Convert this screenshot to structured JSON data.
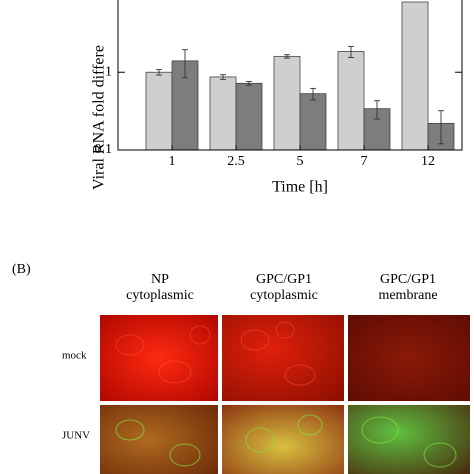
{
  "chart_data": {
    "type": "bar",
    "log_scale": true,
    "y_label": "Viral RNA fold differe",
    "x_label": "Time [h]",
    "categories": [
      "1",
      "2.5",
      "5",
      "7",
      "12"
    ],
    "series": [
      {
        "color": "#cfcfcf",
        "values": [
          1.0,
          0.87,
          1.6,
          1.85,
          8
        ],
        "errors": [
          0.08,
          0.06,
          0.08,
          0.3,
          null
        ]
      },
      {
        "color": "#7d7d7d",
        "values": [
          1.4,
          0.72,
          0.53,
          0.34,
          0.22
        ],
        "errors": [
          0.55,
          0.04,
          0.09,
          0.09,
          0.1
        ]
      }
    ],
    "ylim": [
      0.1,
      8
    ],
    "yticks": [
      0.1,
      1
    ]
  },
  "panel_b": {
    "label": "(B)",
    "columns": [
      [
        "NP",
        "cytoplasmic"
      ],
      [
        "GPC/GP1",
        "cytoplasmic"
      ],
      [
        "GPC/GP1",
        "membrane"
      ]
    ],
    "rows": [
      "mock",
      "JUNV"
    ]
  }
}
